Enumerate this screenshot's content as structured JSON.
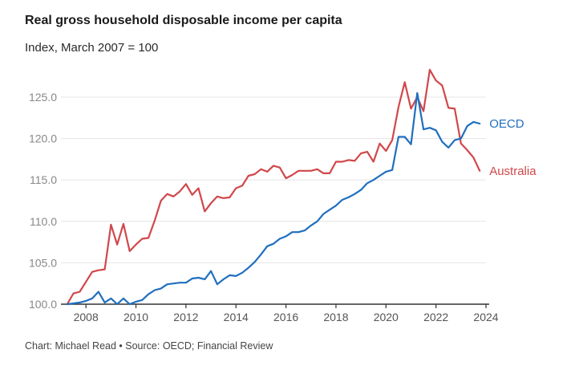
{
  "title": "Real gross household disposable income per capita",
  "subtitle": "Index, March 2007 = 100",
  "footer": "Chart: Michael Read • Source: OECD; Financial Review",
  "chart_data": {
    "type": "line",
    "title": "Real gross household disposable income per capita",
    "ylabel": "Index, March 2007 = 100",
    "xlabel": "",
    "xlim": [
      2007.0,
      2024.0
    ],
    "ylim": [
      100,
      128
    ],
    "yticks": [
      100,
      105,
      110,
      115,
      120,
      125
    ],
    "ytick_labels": [
      "100.0",
      "105.0",
      "110.0",
      "115.0",
      "120.0",
      "125.0"
    ],
    "xticks": [
      2008,
      2010,
      2012,
      2014,
      2016,
      2018,
      2020,
      2022,
      2024
    ],
    "xtick_labels": [
      "2008",
      "2010",
      "2012",
      "2014",
      "2016",
      "2018",
      "2020",
      "2022",
      "2024"
    ],
    "grid": true,
    "series": [
      {
        "name": "OECD",
        "color": "#1f6fbf",
        "x": [
          2007.25,
          2007.5,
          2007.75,
          2008.0,
          2008.25,
          2008.5,
          2008.75,
          2009.0,
          2009.25,
          2009.5,
          2009.75,
          2010.0,
          2010.25,
          2010.5,
          2010.75,
          2011.0,
          2011.25,
          2011.5,
          2011.75,
          2012.0,
          2012.25,
          2012.5,
          2012.75,
          2013.0,
          2013.25,
          2013.5,
          2013.75,
          2014.0,
          2014.25,
          2014.5,
          2014.75,
          2015.0,
          2015.25,
          2015.5,
          2015.75,
          2016.0,
          2016.25,
          2016.5,
          2016.75,
          2017.0,
          2017.25,
          2017.5,
          2017.75,
          2018.0,
          2018.25,
          2018.5,
          2018.75,
          2019.0,
          2019.25,
          2019.5,
          2019.75,
          2020.0,
          2020.25,
          2020.5,
          2020.75,
          2021.0,
          2021.25,
          2021.5,
          2021.75,
          2022.0,
          2022.25,
          2022.5,
          2022.75,
          2023.0,
          2023.25,
          2023.5,
          2023.75
        ],
        "values": [
          100.0,
          100.1,
          100.2,
          100.4,
          100.7,
          101.5,
          100.2,
          100.7,
          100.0,
          100.7,
          100.0,
          100.3,
          100.5,
          101.2,
          101.7,
          101.9,
          102.4,
          102.5,
          102.6,
          102.6,
          103.1,
          103.2,
          103.0,
          104.0,
          102.4,
          103.0,
          103.5,
          103.4,
          103.8,
          104.4,
          105.1,
          106.0,
          107.0,
          107.3,
          107.9,
          108.2,
          108.7,
          108.7,
          108.9,
          109.5,
          110.0,
          110.9,
          111.4,
          111.9,
          112.6,
          112.9,
          113.3,
          113.8,
          114.6,
          115.0,
          115.5,
          116.0,
          116.2,
          120.2,
          120.2,
          119.3,
          125.5,
          121.1,
          121.3,
          121.0,
          119.6,
          118.9,
          119.8,
          120.0,
          121.5,
          122.0,
          121.8
        ]
      },
      {
        "name": "Australia",
        "color": "#d0474b",
        "x": [
          2007.25,
          2007.5,
          2007.75,
          2008.0,
          2008.25,
          2008.5,
          2008.75,
          2009.0,
          2009.25,
          2009.5,
          2009.75,
          2010.0,
          2010.25,
          2010.5,
          2010.75,
          2011.0,
          2011.25,
          2011.5,
          2011.75,
          2012.0,
          2012.25,
          2012.5,
          2012.75,
          2013.0,
          2013.25,
          2013.5,
          2013.75,
          2014.0,
          2014.25,
          2014.5,
          2014.75,
          2015.0,
          2015.25,
          2015.5,
          2015.75,
          2016.0,
          2016.25,
          2016.5,
          2016.75,
          2017.0,
          2017.25,
          2017.5,
          2017.75,
          2018.0,
          2018.25,
          2018.5,
          2018.75,
          2019.0,
          2019.25,
          2019.5,
          2019.75,
          2020.0,
          2020.25,
          2020.5,
          2020.75,
          2021.0,
          2021.25,
          2021.5,
          2021.75,
          2022.0,
          2022.25,
          2022.5,
          2022.75,
          2023.0,
          2023.25,
          2023.5,
          2023.75
        ],
        "values": [
          100.0,
          101.3,
          101.5,
          102.7,
          103.9,
          104.1,
          104.2,
          109.6,
          107.2,
          109.7,
          106.4,
          107.2,
          107.9,
          108.0,
          110.1,
          112.5,
          113.3,
          113.0,
          113.6,
          114.5,
          113.2,
          114.0,
          111.2,
          112.2,
          113.0,
          112.8,
          112.9,
          114.0,
          114.3,
          115.5,
          115.7,
          116.3,
          116.0,
          116.7,
          116.5,
          115.2,
          115.6,
          116.1,
          116.1,
          116.1,
          116.3,
          115.8,
          115.8,
          117.2,
          117.2,
          117.4,
          117.3,
          118.2,
          118.4,
          117.2,
          119.4,
          118.5,
          119.8,
          123.8,
          126.8,
          123.6,
          125.0,
          123.3,
          128.3,
          127.0,
          126.4,
          123.7,
          123.6,
          119.4,
          118.6,
          117.7,
          116.1
        ]
      }
    ]
  }
}
